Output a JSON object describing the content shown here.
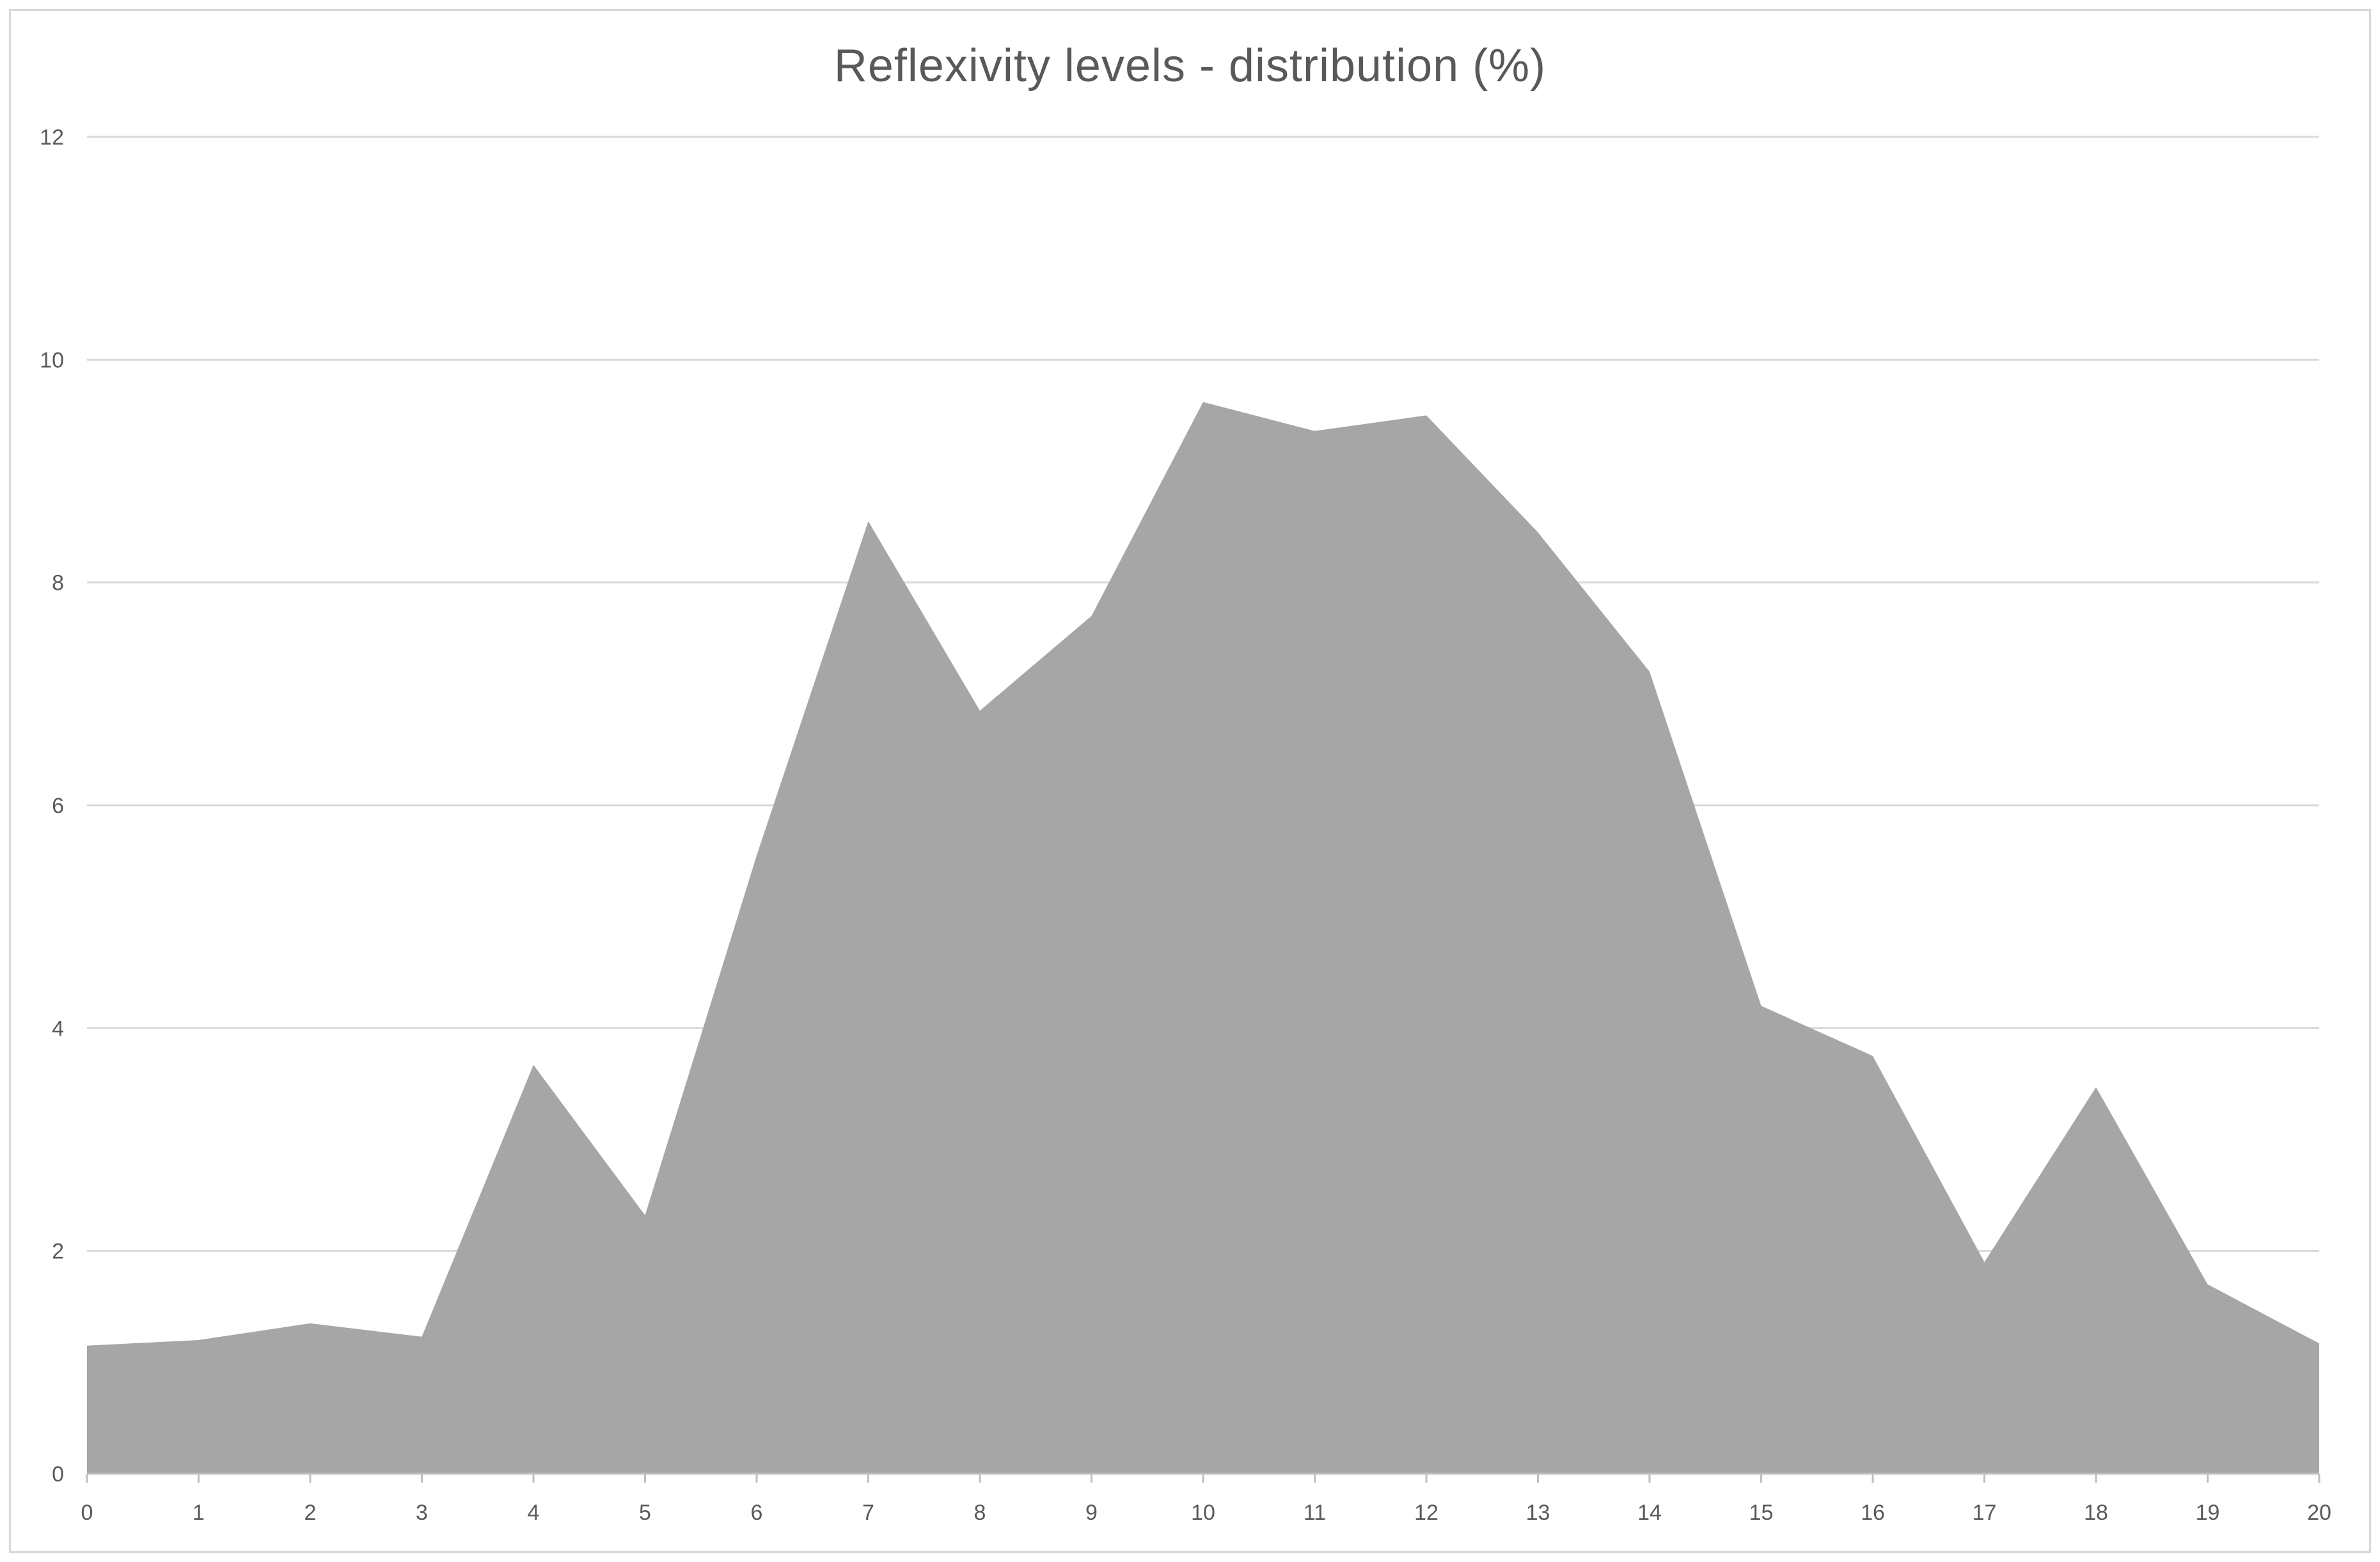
{
  "chart_data": {
    "type": "area",
    "title": "Reflexivity levels - distribution (%)",
    "xlabel": "",
    "ylabel": "",
    "x": [
      0,
      1,
      2,
      3,
      4,
      5,
      6,
      7,
      8,
      9,
      10,
      11,
      12,
      13,
      14,
      15,
      16,
      17,
      18,
      19,
      20
    ],
    "series": [
      {
        "values": [
          1.15,
          1.2,
          1.35,
          1.23,
          3.67,
          2.32,
          5.55,
          8.55,
          6.85,
          7.7,
          9.62,
          9.36,
          9.5,
          8.45,
          7.2,
          4.2,
          3.75,
          1.9,
          3.47,
          1.7,
          1.17
        ],
        "color": "#a6a6a6"
      }
    ],
    "xlim": [
      0,
      20
    ],
    "ylim": [
      0,
      12
    ],
    "x_ticks": [
      "0",
      "1",
      "2",
      "3",
      "4",
      "5",
      "6",
      "7",
      "8",
      "9",
      "10",
      "11",
      "12",
      "13",
      "14",
      "15",
      "16",
      "17",
      "18",
      "19",
      "20"
    ],
    "y_ticks": [
      "0",
      "2",
      "4",
      "6",
      "8",
      "10",
      "12"
    ],
    "grid": true,
    "legend": "none",
    "colors": {
      "fill": "#a6a6a6",
      "gridline": "#d9d9d9",
      "axis": "#bfbfbf",
      "text": "#595959"
    }
  }
}
